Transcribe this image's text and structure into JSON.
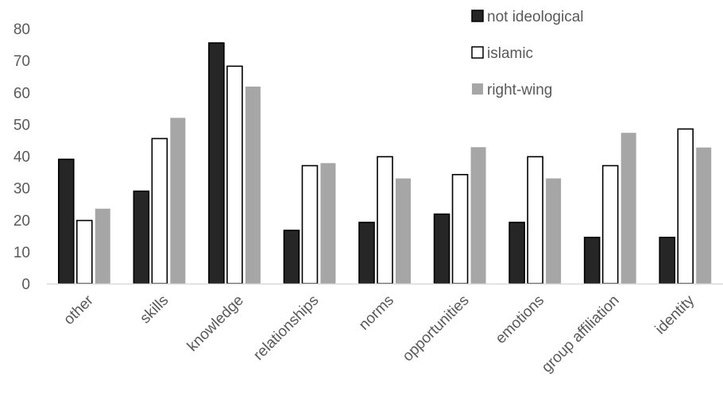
{
  "chart_data": {
    "type": "bar",
    "title": "",
    "xlabel": "",
    "ylabel": "",
    "ylim": [
      0,
      80
    ],
    "yticks": [
      0,
      10,
      20,
      30,
      40,
      50,
      60,
      70,
      80
    ],
    "grid": false,
    "legend_position": "top-right",
    "categories": [
      "other",
      "skills",
      "knowledge",
      "relationships",
      "norms",
      "opportunities",
      "emotions",
      "group affiliation",
      "identity"
    ],
    "series": [
      {
        "name": "not ideological",
        "color": "#262626",
        "values": [
          39,
          29,
          75.5,
          16.7,
          19.2,
          21.8,
          19.2,
          14.5,
          14.5
        ]
      },
      {
        "name": "islamic",
        "color": "#ffffff",
        "values": [
          19.8,
          45.5,
          68.2,
          37,
          39.8,
          34.2,
          39.8,
          37,
          48.5
        ]
      },
      {
        "name": "right-wing",
        "color": "#a6a6a6",
        "values": [
          23.5,
          52,
          61.8,
          37.8,
          33,
          42.8,
          33,
          47.3,
          42.7
        ]
      }
    ]
  }
}
